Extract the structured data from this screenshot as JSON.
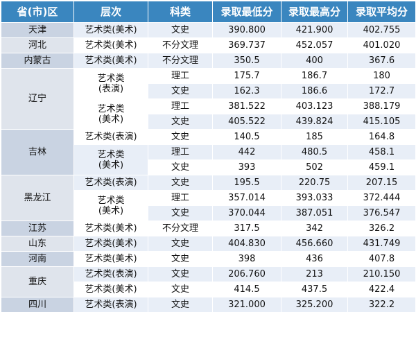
{
  "table": {
    "headers": [
      "省(市)区",
      "层次",
      "科类",
      "录取最低分",
      "录取最高分",
      "录取平均分"
    ],
    "provinces": {
      "tianjin": "天津",
      "hebei": "河北",
      "neimenggu": "内蒙古",
      "liaoning": "辽宁",
      "jilin": "吉林",
      "heilongjiang": "黑龙江",
      "jiangsu": "江苏",
      "shandong": "山东",
      "henan": "河南",
      "chongqing": "重庆",
      "sichuan": "四川"
    },
    "levels": {
      "meishu": "艺术类(美术)",
      "biaoyan": "艺术类(表演)",
      "biaoyan_line1": "艺术类",
      "biaoyan_line2": "(表演)",
      "meishu_line1": "艺术类",
      "meishu_line2": "(美术)"
    },
    "subjects": {
      "wenshi": "文史",
      "ligong": "理工",
      "bufen": "不分文理"
    },
    "rows": [
      {
        "min": "390.800",
        "max": "421.900",
        "avg": "402.755"
      },
      {
        "min": "369.737",
        "max": "452.057",
        "avg": "401.020"
      },
      {
        "min": "350.5",
        "max": "400",
        "avg": "367.6"
      },
      {
        "min": "175.7",
        "max": "186.7",
        "avg": "180"
      },
      {
        "min": "162.3",
        "max": "186.6",
        "avg": "172.7"
      },
      {
        "min": "381.522",
        "max": "403.123",
        "avg": "388.179"
      },
      {
        "min": "405.522",
        "max": "439.824",
        "avg": "415.105"
      },
      {
        "min": "140.5",
        "max": "185",
        "avg": "164.8"
      },
      {
        "min": "442",
        "max": "480.5",
        "avg": "458.1"
      },
      {
        "min": "393",
        "max": "502",
        "avg": "459.1"
      },
      {
        "min": "195.5",
        "max": "220.75",
        "avg": "207.15"
      },
      {
        "min": "357.014",
        "max": "393.033",
        "avg": "372.444"
      },
      {
        "min": "370.044",
        "max": "387.051",
        "avg": "376.547"
      },
      {
        "min": "317.5",
        "max": "342",
        "avg": "326.2"
      },
      {
        "min": "404.830",
        "max": "456.660",
        "avg": "431.749"
      },
      {
        "min": "398",
        "max": "436",
        "avg": "407.8"
      },
      {
        "min": "206.760",
        "max": "213",
        "avg": "210.150"
      },
      {
        "min": "414.5",
        "max": "437.5",
        "avg": "422.4"
      },
      {
        "min": "321.000",
        "max": "325.200",
        "avg": "322.2"
      }
    ]
  }
}
